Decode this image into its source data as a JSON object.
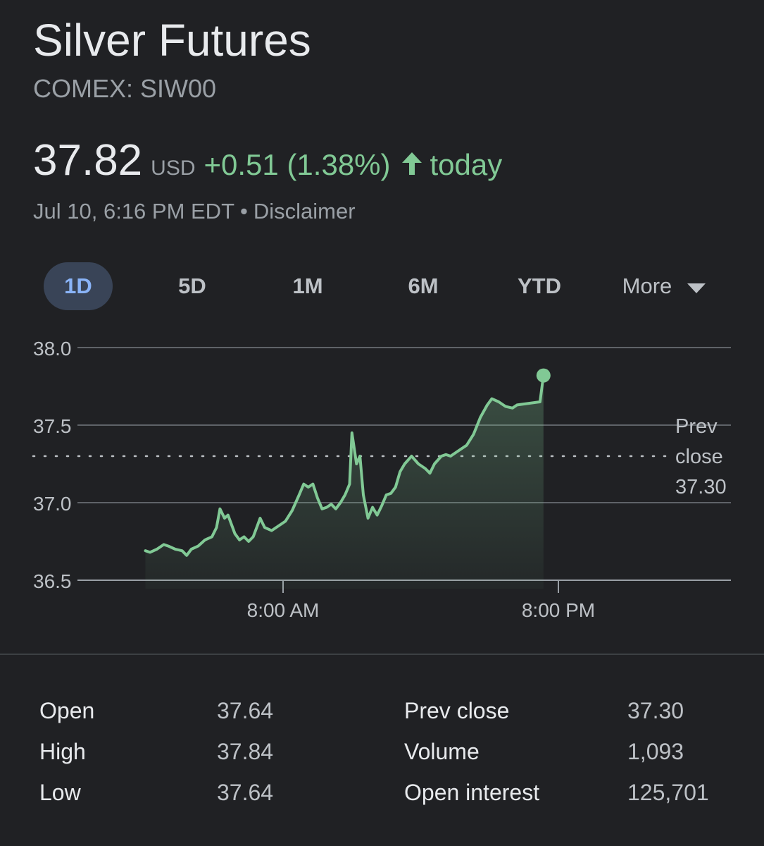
{
  "header": {
    "title": "Silver Futures",
    "ticker": "COMEX: SIW00"
  },
  "quote": {
    "price": "37.82",
    "currency": "USD",
    "change": "+0.51 (1.38%)",
    "direction_icon": "arrow-up-icon",
    "period": "today",
    "timestamp": "Jul 10, 6:16 PM EDT",
    "separator": "•",
    "disclaimer": "Disclaimer"
  },
  "colors": {
    "background": "#202124",
    "positive": "#81c995",
    "active_tab_bg": "#394457",
    "active_tab_text": "#8ab4f8",
    "gridline": "#5f6368"
  },
  "tabs": [
    {
      "label": "1D",
      "active": true
    },
    {
      "label": "5D",
      "active": false
    },
    {
      "label": "1M",
      "active": false
    },
    {
      "label": "6M",
      "active": false
    },
    {
      "label": "YTD",
      "active": false
    }
  ],
  "more": {
    "label": "More",
    "icon": "caret-down-icon"
  },
  "chart_data": {
    "type": "area",
    "title": "",
    "xlabel": "",
    "ylabel": "",
    "ylim": [
      36.5,
      38.0
    ],
    "yticks": [
      "38.0",
      "37.5",
      "37.0",
      "36.5"
    ],
    "xticks": [
      {
        "label": "8:00 AM",
        "x": 8
      },
      {
        "label": "8:00 PM",
        "x": 20
      }
    ],
    "x_range_hours": [
      2,
      23.5
    ],
    "prev_close": {
      "label_line1": "Prev",
      "label_line2": "close",
      "value_label": "37.30",
      "value": 37.3
    },
    "grid": true,
    "series": [
      {
        "values": [
          [
            2.0,
            36.69
          ],
          [
            2.2,
            36.68
          ],
          [
            2.5,
            36.7
          ],
          [
            2.8,
            36.73
          ],
          [
            3.0,
            36.72
          ],
          [
            3.3,
            36.7
          ],
          [
            3.6,
            36.69
          ],
          [
            3.8,
            36.66
          ],
          [
            4.0,
            36.7
          ],
          [
            4.3,
            36.72
          ],
          [
            4.6,
            36.76
          ],
          [
            4.9,
            36.78
          ],
          [
            5.1,
            36.84
          ],
          [
            5.25,
            36.96
          ],
          [
            5.45,
            36.9
          ],
          [
            5.6,
            36.92
          ],
          [
            5.9,
            36.8
          ],
          [
            6.1,
            36.76
          ],
          [
            6.3,
            36.78
          ],
          [
            6.5,
            36.75
          ],
          [
            6.7,
            36.78
          ],
          [
            6.9,
            36.86
          ],
          [
            7.0,
            36.9
          ],
          [
            7.2,
            36.84
          ],
          [
            7.5,
            36.82
          ],
          [
            7.8,
            36.85
          ],
          [
            8.1,
            36.88
          ],
          [
            8.4,
            36.95
          ],
          [
            8.7,
            37.05
          ],
          [
            8.9,
            37.12
          ],
          [
            9.1,
            37.1
          ],
          [
            9.3,
            37.12
          ],
          [
            9.5,
            37.03
          ],
          [
            9.7,
            36.96
          ],
          [
            9.9,
            36.97
          ],
          [
            10.1,
            36.99
          ],
          [
            10.3,
            36.96
          ],
          [
            10.5,
            37.0
          ],
          [
            10.7,
            37.05
          ],
          [
            10.9,
            37.12
          ],
          [
            11.0,
            37.45
          ],
          [
            11.2,
            37.25
          ],
          [
            11.35,
            37.3
          ],
          [
            11.5,
            37.05
          ],
          [
            11.7,
            36.9
          ],
          [
            11.9,
            36.97
          ],
          [
            12.1,
            36.92
          ],
          [
            12.3,
            36.98
          ],
          [
            12.5,
            37.05
          ],
          [
            12.7,
            37.06
          ],
          [
            12.9,
            37.1
          ],
          [
            13.1,
            37.2
          ],
          [
            13.3,
            37.25
          ],
          [
            13.6,
            37.3
          ],
          [
            13.9,
            37.25
          ],
          [
            14.2,
            37.22
          ],
          [
            14.4,
            37.19
          ],
          [
            14.6,
            37.25
          ],
          [
            14.9,
            37.3
          ],
          [
            15.1,
            37.31
          ],
          [
            15.3,
            37.3
          ],
          [
            15.6,
            37.33
          ],
          [
            15.8,
            37.35
          ],
          [
            16.0,
            37.37
          ],
          [
            16.3,
            37.44
          ],
          [
            16.6,
            37.55
          ],
          [
            16.9,
            37.63
          ],
          [
            17.1,
            37.67
          ],
          [
            17.4,
            37.65
          ],
          [
            17.7,
            37.62
          ],
          [
            18.0,
            37.61
          ],
          [
            18.2,
            37.63
          ],
          [
            19.2,
            37.65
          ],
          [
            19.35,
            37.82
          ]
        ]
      }
    ],
    "color": "#81c995"
  },
  "stats": {
    "left": [
      {
        "label": "Open",
        "value": "37.64"
      },
      {
        "label": "High",
        "value": "37.84"
      },
      {
        "label": "Low",
        "value": "37.64"
      }
    ],
    "right": [
      {
        "label": "Prev close",
        "value": "37.30"
      },
      {
        "label": "Volume",
        "value": "1,093"
      },
      {
        "label": "Open interest",
        "value": "125,701"
      }
    ]
  }
}
